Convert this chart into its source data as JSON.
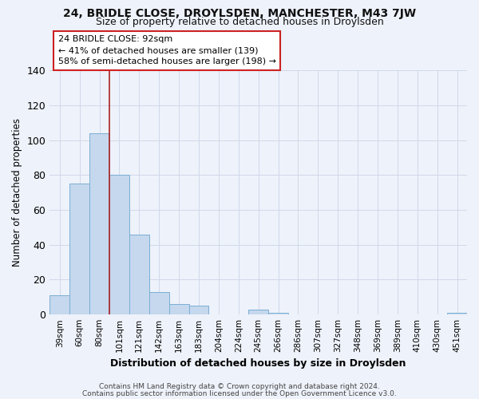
{
  "title": "24, BRIDLE CLOSE, DROYLSDEN, MANCHESTER, M43 7JW",
  "subtitle": "Size of property relative to detached houses in Droylsden",
  "xlabel": "Distribution of detached houses by size in Droylsden",
  "ylabel": "Number of detached properties",
  "bar_labels": [
    "39sqm",
    "60sqm",
    "80sqm",
    "101sqm",
    "121sqm",
    "142sqm",
    "163sqm",
    "183sqm",
    "204sqm",
    "224sqm",
    "245sqm",
    "266sqm",
    "286sqm",
    "307sqm",
    "327sqm",
    "348sqm",
    "369sqm",
    "389sqm",
    "410sqm",
    "430sqm",
    "451sqm"
  ],
  "bar_values": [
    11,
    75,
    104,
    80,
    46,
    13,
    6,
    5,
    0,
    0,
    3,
    1,
    0,
    0,
    0,
    0,
    0,
    0,
    0,
    0,
    1
  ],
  "bar_color": "#c5d8ee",
  "bar_edge_color": "#7aaed4",
  "ylim": [
    0,
    140
  ],
  "yticks": [
    0,
    20,
    40,
    60,
    80,
    100,
    120,
    140
  ],
  "annotation_title": "24 BRIDLE CLOSE: 92sqm",
  "annotation_line1": "← 41% of detached houses are smaller (139)",
  "annotation_line2": "58% of semi-detached houses are larger (198) →",
  "vline_color": "#aa2222",
  "annotation_box_edge_color": "#cc2222",
  "footer1": "Contains HM Land Registry data © Crown copyright and database right 2024.",
  "footer2": "Contains public sector information licensed under the Open Government Licence v3.0.",
  "bg_color": "#eef2fa",
  "grid_color": "#d0d8ea",
  "title_fontsize": 10,
  "subtitle_fontsize": 9
}
